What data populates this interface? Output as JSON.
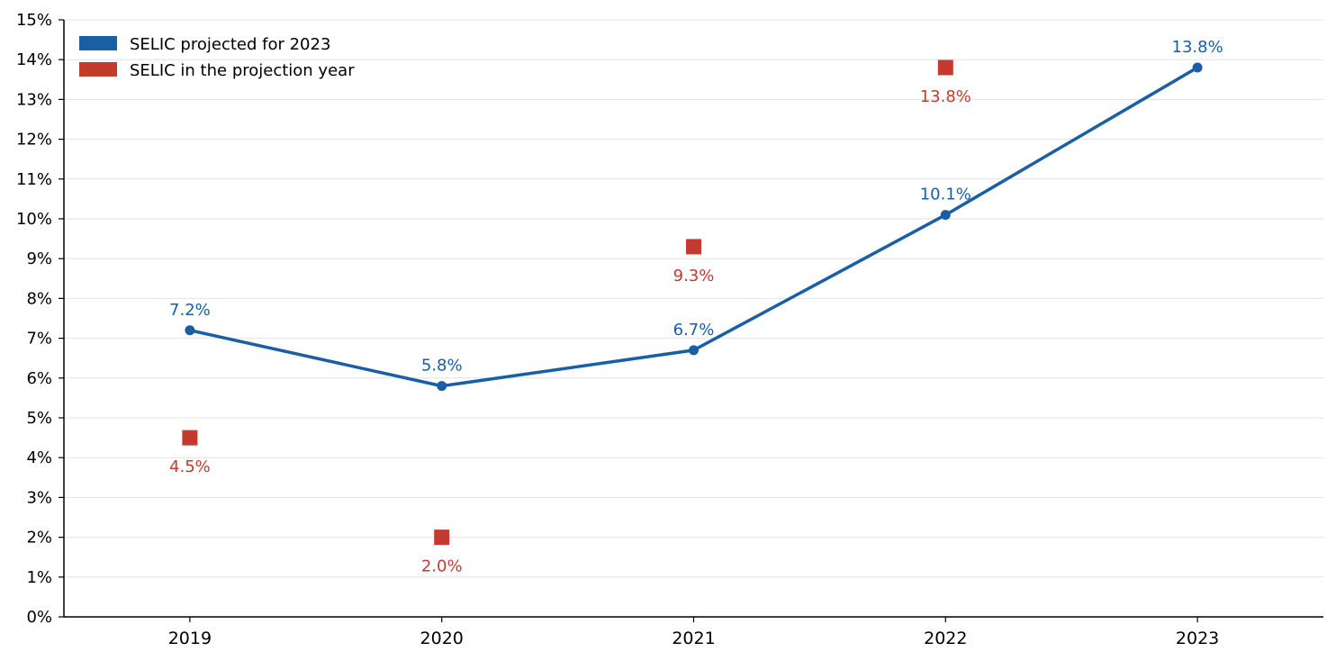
{
  "chart_data": {
    "type": "line",
    "title": "",
    "xlabel": "",
    "ylabel": "",
    "categories": [
      "2019",
      "2020",
      "2021",
      "2022",
      "2023"
    ],
    "ylim": [
      0,
      15
    ],
    "y_ticks": [
      "0%",
      "1%",
      "2%",
      "3%",
      "4%",
      "5%",
      "6%",
      "7%",
      "8%",
      "9%",
      "10%",
      "11%",
      "12%",
      "13%",
      "14%",
      "15%"
    ],
    "grid": "horizontal",
    "legend_position": "top-left",
    "series": [
      {
        "name": "SELIC projected for 2023",
        "kind": "line",
        "marker": "circle",
        "color": "#1a5fa6",
        "values": [
          7.2,
          5.8,
          6.7,
          10.1,
          13.8
        ],
        "labels": [
          "7.2%",
          "5.8%",
          "6.7%",
          "10.1%",
          "13.8%"
        ]
      },
      {
        "name": "SELIC in the projection year",
        "kind": "scatter",
        "marker": "square",
        "color": "#c43a2e",
        "values": [
          4.5,
          2.0,
          9.3,
          13.8,
          null
        ],
        "labels": [
          "4.5%",
          "2.0%",
          "9.3%",
          "13.8%",
          null
        ]
      }
    ]
  }
}
